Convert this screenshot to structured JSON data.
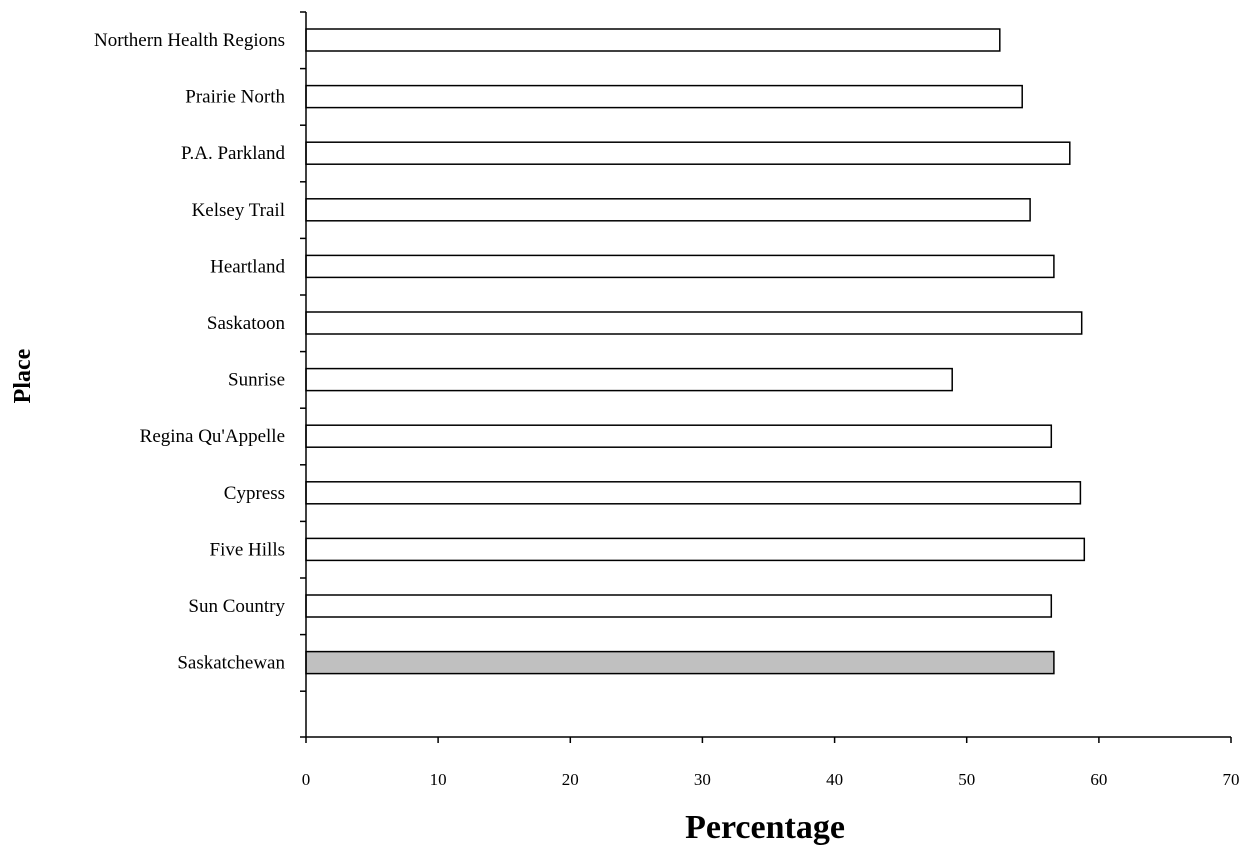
{
  "chart_data": {
    "type": "bar",
    "orientation": "horizontal",
    "title": "",
    "xlabel": "Percentage",
    "ylabel": "Place",
    "xlim": [
      0,
      70
    ],
    "x_ticks": [
      0,
      10,
      20,
      30,
      40,
      50,
      60,
      70
    ],
    "grid": false,
    "legend": "none",
    "categories": [
      "Northern Health Regions",
      "Prairie North",
      "P.A. Parkland",
      "Kelsey Trail",
      "Heartland",
      "Saskatoon",
      "Sunrise",
      "Regina Qu'Appelle",
      "Cypress",
      "Five Hills",
      "Sun Country",
      "Saskatchewan"
    ],
    "values": [
      52.5,
      54.2,
      57.8,
      54.8,
      56.6,
      58.7,
      48.9,
      56.4,
      58.6,
      58.9,
      56.4,
      56.6
    ],
    "colors": {
      "bar_fill": "#ffffff",
      "highlight_fill": "#c0c0c0",
      "stroke": "#000000"
    },
    "highlight_category": "Saskatchewan"
  }
}
